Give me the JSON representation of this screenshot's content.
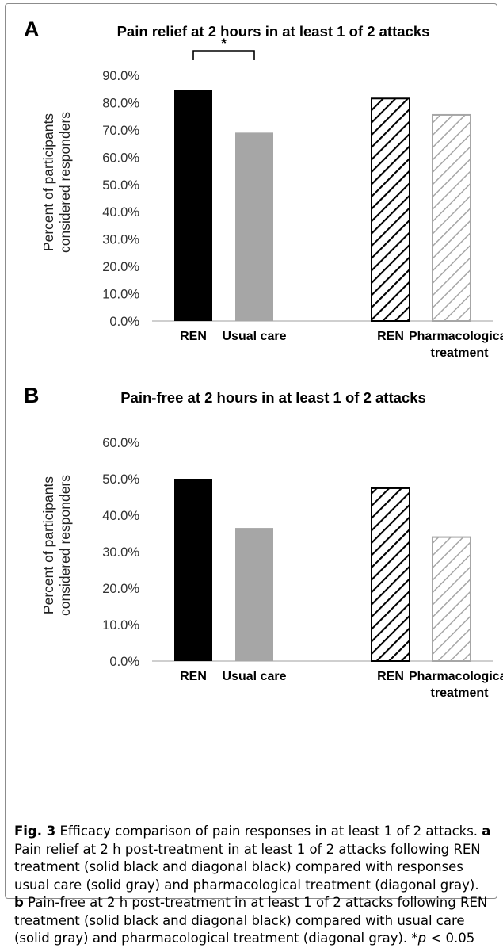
{
  "chart_data": [
    {
      "type": "bar",
      "panel_label": "A",
      "title": "Pain relief at 2 hours in at least 1 of 2 attacks",
      "ylabel_lines": [
        "Percent of participants",
        "considered responders"
      ],
      "ylim": [
        0,
        90
      ],
      "yticks": [
        "0.0%",
        "10.0%",
        "20.0%",
        "30.0%",
        "40.0%",
        "50.0%",
        "60.0%",
        "70.0%",
        "80.0%",
        "90.0%"
      ],
      "grid": false,
      "bars": [
        {
          "category": "REN",
          "value": 84.5,
          "style": "solid-black"
        },
        {
          "category": "Usual care",
          "value": 69.0,
          "style": "solid-gray"
        },
        {
          "category": "REN",
          "value": 81.5,
          "style": "diagonal-black"
        },
        {
          "category": "Pharmacological treatment",
          "value": 75.5,
          "style": "diagonal-gray"
        }
      ],
      "category_label_lines": [
        [
          "REN"
        ],
        [
          "Usual care"
        ],
        [
          "REN"
        ],
        [
          "Pharmacological",
          "treatment"
        ]
      ],
      "significance": {
        "label": "*",
        "between": [
          0,
          1
        ]
      }
    },
    {
      "type": "bar",
      "panel_label": "B",
      "title": "Pain-free at 2 hours in at least 1 of 2 attacks",
      "ylabel_lines": [
        "Percent of participants",
        "considered responders"
      ],
      "ylim": [
        0,
        60
      ],
      "yticks": [
        "0.0%",
        "10.0%",
        "20.0%",
        "30.0%",
        "40.0%",
        "50.0%",
        "60.0%"
      ],
      "grid": false,
      "bars": [
        {
          "category": "REN",
          "value": 50.0,
          "style": "solid-black"
        },
        {
          "category": "Usual care",
          "value": 36.5,
          "style": "solid-gray"
        },
        {
          "category": "REN",
          "value": 47.4,
          "style": "diagonal-black"
        },
        {
          "category": "Pharmacological treatment",
          "value": 34.0,
          "style": "diagonal-gray"
        }
      ],
      "category_label_lines": [
        [
          "REN"
        ],
        [
          "Usual care"
        ],
        [
          "REN"
        ],
        [
          "Pharmacological",
          "treatment"
        ]
      ]
    }
  ],
  "caption": {
    "fig_label": "Fig. 3",
    "intro": " Efficacy comparison of pain responses in at least 1 of 2 attacks. ",
    "a_label": "a",
    "a_text": " Pain relief at 2 h post-treatment in at least 1 of 2 attacks following REN treatment (solid black and diagonal black) compared with responses usual care (solid gray) and pharmacological treatment (diagonal gray). ",
    "b_label": "b",
    "b_text": " Pain-free at 2 h post-treatment in at least 1 of 2 attacks following REN treatment (solid black and diagonal black) compared with usual care (solid gray) and pharmacological treatment (diagonal gray). ",
    "p_prefix": "*",
    "p_var": "p",
    "p_suffix": " < 0.05"
  },
  "colors": {
    "black": "#000000",
    "gray": "#a6a6a6",
    "axis": "#bfbfbf"
  }
}
